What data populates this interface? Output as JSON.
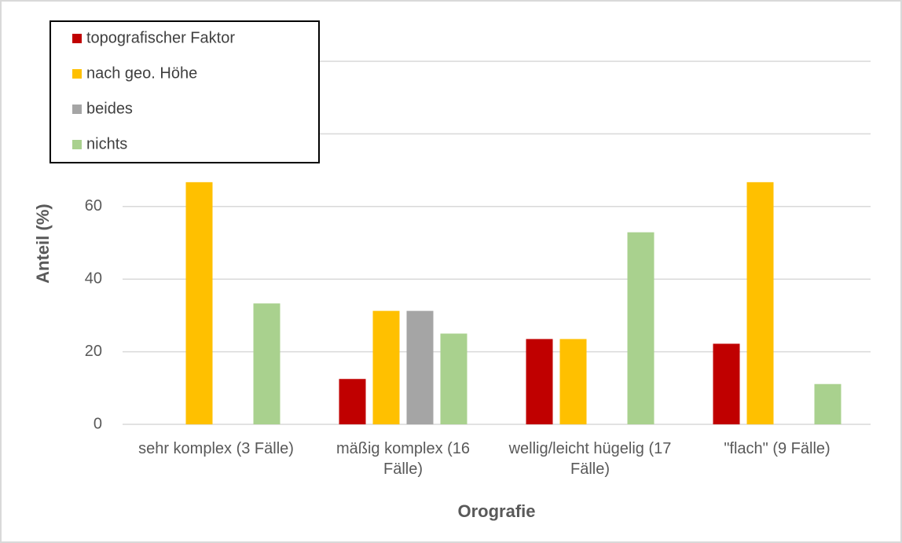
{
  "chart_data": {
    "type": "bar",
    "categories": [
      "sehr komplex (3 Fälle)",
      "mäßig komplex (16 Fälle)",
      "wellig/leicht hügelig (17 Fälle)",
      "\"flach\" (9 Fälle)"
    ],
    "series": [
      {
        "name": "topografischer Faktor",
        "color": "#c00000",
        "values": [
          0,
          12.5,
          23.5,
          22.2
        ]
      },
      {
        "name": "nach geo. Höhe",
        "color": "#ffc000",
        "values": [
          66.7,
          31.25,
          23.5,
          66.7
        ]
      },
      {
        "name": "beides",
        "color": "#a5a5a5",
        "values": [
          0,
          31.25,
          0,
          0
        ]
      },
      {
        "name": "nichts",
        "color": "#a9d18e",
        "values": [
          33.3,
          25,
          52.9,
          11.1
        ]
      }
    ],
    "ylabel": "Anteil (%)",
    "xlabel": "Orografie",
    "ylim": [
      0,
      100
    ],
    "yticks": [
      0,
      20,
      40,
      60,
      80,
      100
    ],
    "grid": true,
    "legend": "upper left"
  }
}
